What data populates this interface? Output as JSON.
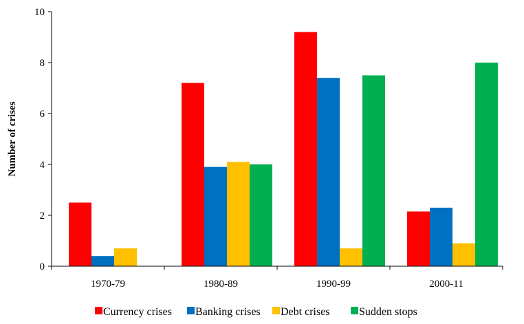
{
  "chart_data": {
    "type": "bar",
    "title": "",
    "xlabel": "",
    "ylabel": "Number of crises",
    "ylim": [
      0,
      10
    ],
    "yticks": [
      0,
      2,
      4,
      6,
      8,
      10
    ],
    "grid": false,
    "legend_position": "bottom",
    "categories": [
      "1970-79",
      "1980-89",
      "1990-99",
      "2000-11"
    ],
    "series": [
      {
        "name": "Currency crises",
        "color": "#ff0000",
        "values": [
          2.5,
          7.2,
          9.2,
          2.15
        ]
      },
      {
        "name": "Banking crises",
        "color": "#0070c0",
        "values": [
          0.4,
          3.9,
          7.4,
          2.3
        ]
      },
      {
        "name": "Debt crises",
        "color": "#ffc000",
        "values": [
          0.7,
          4.1,
          0.7,
          0.9
        ]
      },
      {
        "name": "Sudden stops",
        "color": "#00b050",
        "values": [
          0,
          4.0,
          7.5,
          8.0
        ]
      }
    ]
  }
}
